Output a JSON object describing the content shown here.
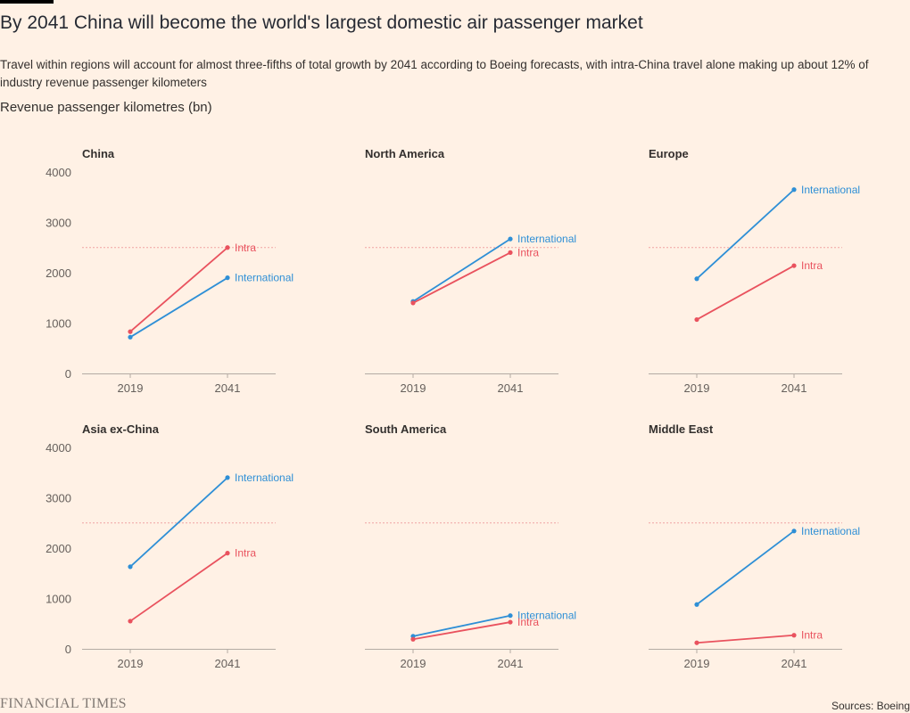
{
  "header": {
    "title": "By 2041 China will become the world's largest domestic air passenger market",
    "subtitle": "Travel within regions will account for almost three-fifths of total growth by 2041 according to Boeing forecasts, with intra-China travel alone making up about 12% of industry revenue passenger kilometers",
    "unit_label": "Revenue passenger kilometres (bn)"
  },
  "footer": {
    "logo_text": "FINANCIAL TIMES",
    "source": "Sources: Boeing"
  },
  "colors": {
    "intra": "#e9525e",
    "international": "#2e8fd6",
    "axis": "#b3aba4",
    "reference_line": "#f0a3a3"
  },
  "chart_data": [
    {
      "type": "line",
      "title": "China",
      "x": [
        "2019",
        "2041"
      ],
      "ylim": [
        0,
        4000
      ],
      "yticks": [
        0,
        1000,
        2000,
        3000,
        4000
      ],
      "reference_line": 2500,
      "series": [
        {
          "name": "Intra",
          "key": "intra",
          "values": [
            830,
            2500
          ]
        },
        {
          "name": "International",
          "key": "international",
          "values": [
            720,
            1900
          ]
        }
      ]
    },
    {
      "type": "line",
      "title": "North America",
      "x": [
        "2019",
        "2041"
      ],
      "ylim": [
        0,
        4000
      ],
      "yticks": [
        0,
        1000,
        2000,
        3000,
        4000
      ],
      "reference_line": 2500,
      "series": [
        {
          "name": "International",
          "key": "international",
          "values": [
            1430,
            2670
          ]
        },
        {
          "name": "Intra",
          "key": "intra",
          "values": [
            1400,
            2400
          ]
        }
      ]
    },
    {
      "type": "line",
      "title": "Europe",
      "x": [
        "2019",
        "2041"
      ],
      "ylim": [
        0,
        4000
      ],
      "yticks": [
        0,
        1000,
        2000,
        3000,
        4000
      ],
      "reference_line": 2500,
      "series": [
        {
          "name": "International",
          "key": "international",
          "values": [
            1880,
            3650
          ]
        },
        {
          "name": "Intra",
          "key": "intra",
          "values": [
            1070,
            2140
          ]
        }
      ]
    },
    {
      "type": "line",
      "title": "Asia ex-China",
      "x": [
        "2019",
        "2041"
      ],
      "ylim": [
        0,
        4000
      ],
      "yticks": [
        0,
        1000,
        2000,
        3000,
        4000
      ],
      "reference_line": 2500,
      "series": [
        {
          "name": "International",
          "key": "international",
          "values": [
            1630,
            3400
          ]
        },
        {
          "name": "Intra",
          "key": "intra",
          "values": [
            550,
            1900
          ]
        }
      ]
    },
    {
      "type": "line",
      "title": "South America",
      "x": [
        "2019",
        "2041"
      ],
      "ylim": [
        0,
        4000
      ],
      "yticks": [
        0,
        1000,
        2000,
        3000,
        4000
      ],
      "reference_line": 2500,
      "series": [
        {
          "name": "International",
          "key": "international",
          "values": [
            250,
            660
          ]
        },
        {
          "name": "Intra",
          "key": "intra",
          "values": [
            190,
            530
          ]
        }
      ]
    },
    {
      "type": "line",
      "title": "Middle East",
      "x": [
        "2019",
        "2041"
      ],
      "ylim": [
        0,
        4000
      ],
      "yticks": [
        0,
        1000,
        2000,
        3000,
        4000
      ],
      "reference_line": 2500,
      "series": [
        {
          "name": "International",
          "key": "international",
          "values": [
            880,
            2340
          ]
        },
        {
          "name": "Intra",
          "key": "intra",
          "values": [
            120,
            270
          ]
        }
      ]
    }
  ]
}
